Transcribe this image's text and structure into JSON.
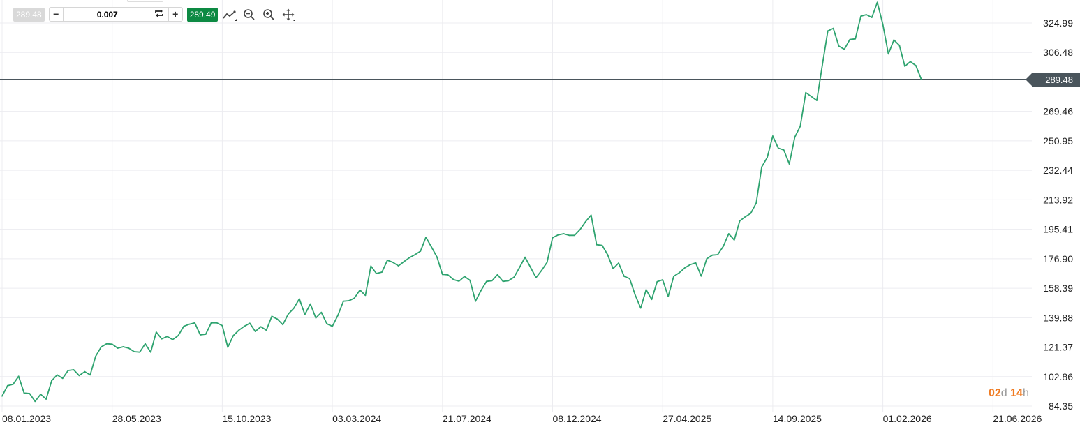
{
  "toolbar": {
    "bid_price": "289.48",
    "ask_price": "289.49",
    "quantity_value": "0.007",
    "decrease_label": "−",
    "increase_label": "+",
    "icons": [
      "swap-icon",
      "line-chart-type-icon",
      "zoom-out-icon",
      "zoom-in-icon",
      "pan-move-icon"
    ]
  },
  "countdown": {
    "days": "02",
    "days_unit": "d",
    "hours": "14",
    "hours_unit": "h"
  },
  "colors": {
    "line": "#2ea36f",
    "bid_bg": "#d9d9d9",
    "ask_bg": "#0d8a43",
    "current_price_line": "#4a555c",
    "countdown": "#f07b22",
    "grid": "#ececf0"
  },
  "chart_data": {
    "type": "line",
    "current_price": "289.48",
    "grid": true,
    "y_axis_position": "right",
    "ylim": [
      84.35,
      340
    ],
    "y_ticks": [
      "324.99",
      "306.48",
      "269.46",
      "250.95",
      "232.44",
      "213.92",
      "195.41",
      "176.90",
      "158.39",
      "139.88",
      "121.37",
      "102.86",
      "84.35"
    ],
    "x_ticks": [
      "08.01.2023",
      "28.05.2023",
      "15.10.2023",
      "03.03.2024",
      "21.07.2024",
      "08.12.2024",
      "27.04.2025",
      "14.09.2025",
      "01.02.2026",
      "21.06.2026"
    ],
    "x": [
      "08.01.2023",
      "15.01.2023",
      "22.01.2023",
      "29.01.2023",
      "05.02.2023",
      "12.02.2023",
      "19.02.2023",
      "26.02.2023",
      "05.03.2023",
      "12.03.2023",
      "19.03.2023",
      "26.03.2023",
      "02.04.2023",
      "09.04.2023",
      "16.04.2023",
      "23.04.2023",
      "30.04.2023",
      "07.05.2023",
      "14.05.2023",
      "21.05.2023",
      "28.05.2023",
      "04.06.2023",
      "11.06.2023",
      "18.06.2023",
      "25.06.2023",
      "02.07.2023",
      "09.07.2023",
      "16.07.2023",
      "23.07.2023",
      "30.07.2023",
      "06.08.2023",
      "13.08.2023",
      "20.08.2023",
      "27.08.2023",
      "03.09.2023",
      "10.09.2023",
      "17.09.2023",
      "24.09.2023",
      "01.10.2023",
      "08.10.2023",
      "15.10.2023",
      "22.10.2023",
      "29.10.2023",
      "05.11.2023",
      "12.11.2023",
      "19.11.2023",
      "26.11.2023",
      "03.12.2023",
      "10.12.2023",
      "17.12.2023",
      "24.12.2023",
      "31.12.2023",
      "07.01.2024",
      "14.01.2024",
      "21.01.2024",
      "28.01.2024",
      "04.02.2024",
      "11.02.2024",
      "18.02.2024",
      "25.02.2024",
      "03.03.2024",
      "10.03.2024",
      "17.03.2024",
      "24.03.2024",
      "31.03.2024",
      "07.04.2024",
      "14.04.2024",
      "21.04.2024",
      "28.04.2024",
      "05.05.2024",
      "12.05.2024",
      "19.05.2024",
      "26.05.2024",
      "02.06.2024",
      "09.06.2024",
      "16.06.2024",
      "23.06.2024",
      "30.06.2024",
      "07.07.2024",
      "14.07.2024",
      "21.07.2024",
      "28.07.2024",
      "04.08.2024",
      "11.08.2024",
      "18.08.2024",
      "25.08.2024",
      "01.09.2024",
      "08.09.2024",
      "15.09.2024",
      "22.09.2024",
      "29.09.2024",
      "06.10.2024",
      "13.10.2024",
      "20.10.2024",
      "27.10.2024",
      "03.11.2024",
      "10.11.2024",
      "17.11.2024",
      "24.11.2024",
      "01.12.2024",
      "08.12.2024",
      "15.12.2024",
      "22.12.2024",
      "29.12.2024",
      "05.01.2025",
      "12.01.2025",
      "19.01.2025",
      "26.01.2025",
      "02.02.2025",
      "09.02.2025",
      "16.02.2025",
      "23.02.2025",
      "02.03.2025",
      "09.03.2025",
      "16.03.2025",
      "23.03.2025",
      "30.03.2025",
      "06.04.2025",
      "13.04.2025",
      "20.04.2025",
      "27.04.2025",
      "04.05.2025",
      "11.05.2025",
      "18.05.2025",
      "25.05.2025",
      "01.06.2025",
      "08.06.2025",
      "15.06.2025",
      "22.06.2025",
      "29.06.2025",
      "06.07.2025",
      "13.07.2025",
      "20.07.2025",
      "27.07.2025",
      "03.08.2025",
      "10.08.2025",
      "17.08.2025",
      "24.08.2025",
      "31.08.2025",
      "07.09.2025",
      "14.09.2025",
      "21.09.2025",
      "28.09.2025",
      "05.10.2025",
      "12.10.2025",
      "19.10.2025",
      "26.10.2025",
      "02.11.2025",
      "09.11.2025",
      "16.11.2025",
      "23.11.2025",
      "30.11.2025",
      "07.12.2025",
      "14.12.2025",
      "21.12.2025",
      "28.12.2025",
      "04.01.2026",
      "11.01.2026",
      "18.01.2026",
      "25.01.2026",
      "01.02.2026",
      "08.02.2026",
      "15.02.2026",
      "22.02.2026",
      "01.03.2026",
      "08.03.2026",
      "15.03.2026",
      "22.03.2026"
    ],
    "y": [
      90.62,
      97.19,
      98.07,
      103.07,
      92.55,
      92.24,
      87.29,
      91.8,
      88.73,
      100.26,
      103.94,
      101.75,
      106.7,
      107.14,
      103.5,
      105.96,
      103.94,
      115.6,
      121.48,
      123.49,
      123.23,
      120.73,
      121.61,
      120.73,
      118.54,
      118.23,
      123.49,
      118.23,
      130.81,
      126.56,
      128.05,
      126.12,
      128.62,
      134.45,
      135.76,
      136.64,
      129.06,
      129.5,
      136.64,
      136.64,
      134.89,
      121.3,
      128.62,
      132.0,
      134.45,
      136.38,
      131.25,
      134.19,
      132.0,
      140.76,
      139.01,
      135.5,
      142.21,
      145.85,
      151.72,
      141.9,
      148.48,
      139.71,
      143.22,
      136.07,
      134.45,
      141.33,
      150.23,
      150.54,
      152.16,
      157.24,
      153.91,
      172.32,
      167.63,
      168.51,
      175.96,
      174.64,
      172.45,
      175.08,
      177.58,
      179.46,
      181.66,
      190.42,
      184.29,
      178.02,
      167.06,
      166.75,
      163.82,
      162.81,
      165.75,
      163.38,
      150.23,
      156.98,
      162.68,
      163.12,
      166.89,
      162.68,
      163.12,
      165.31,
      171.44,
      177.84,
      171.44,
      165.0,
      169.52,
      174.64,
      190.12,
      191.87,
      192.61,
      191.61,
      191.61,
      195.24,
      200.2,
      204.32,
      185.73,
      185.3,
      179.46,
      170.7,
      174.21,
      165.88,
      164.43,
      154.17,
      145.93,
      157.46,
      151.32,
      162.5,
      163.69,
      153.17,
      165.88,
      168.07,
      171.14,
      173.2,
      174.34,
      166.01,
      176.84,
      179.16,
      179.46,
      184.59,
      192.61,
      188.67,
      200.64,
      203.27,
      205.46,
      211.9,
      234.56,
      240.52,
      253.98,
      246.4,
      245.21,
      236.45,
      253.23,
      260.12,
      281.29,
      278.83,
      276.33,
      298.56,
      320.04,
      321.61,
      310.52,
      308.46,
      314.6,
      315.04,
      329.24,
      330.25,
      328.49,
      338.01,
      324.11,
      305.57,
      314.34,
      310.96,
      297.81,
      300.75,
      298.25,
      289.48
    ]
  }
}
